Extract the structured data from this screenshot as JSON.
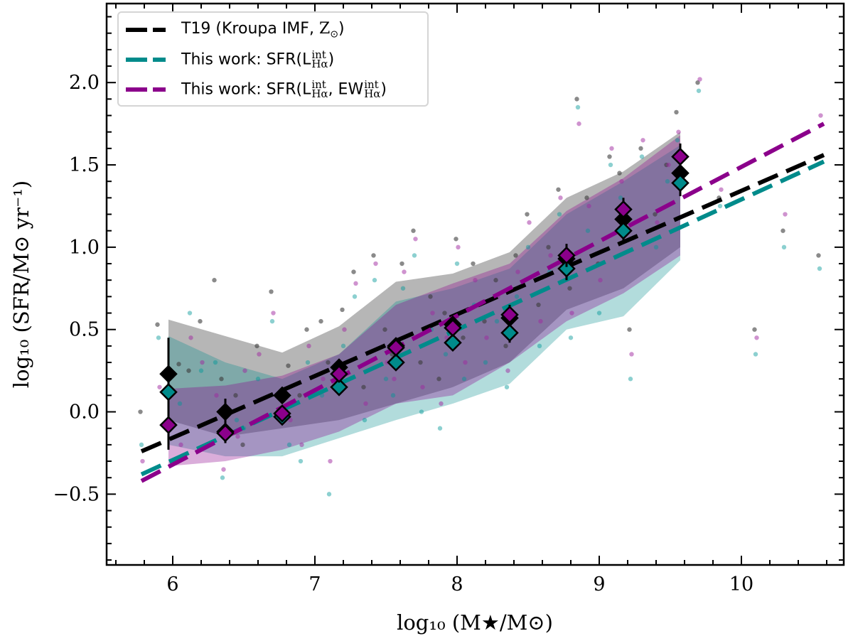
{
  "chart_data": {
    "type": "scatter",
    "xlabel": "log₁₀ (M★/M⊙)",
    "ylabel": "log₁₀ (SFR/M⊙ yr⁻¹)",
    "xlim": [
      5.535,
      10.72
    ],
    "ylim": [
      -0.93,
      2.48
    ],
    "xticks": [
      6,
      7,
      8,
      9,
      10
    ],
    "yticks": [
      -0.5,
      0.0,
      0.5,
      1.0,
      1.5,
      2.0
    ],
    "ytick_labels": [
      "−0.5",
      "0.0",
      "0.5",
      "1.0",
      "1.5",
      "2.0"
    ],
    "grid": false,
    "legend_placement": "top-left",
    "legend": [
      {
        "main": "T19 (Kroupa IMF, ",
        "sym": "Z",
        "sub": "⊙",
        "sup": "",
        "tail": ")",
        "color": "#000000"
      },
      {
        "main": "This work: SFR(L",
        "sup": "int",
        "sub": "Hα",
        "tail": ")",
        "color": "#008b8b"
      },
      {
        "main": "This work: SFR(L",
        "sup": "int",
        "sub": "Hα",
        "mid": ", EW",
        "sup2": "int",
        "sub2": "Hα",
        "tail": ")",
        "color": "#8b008b"
      }
    ],
    "series": [
      {
        "color": "#000000",
        "line": {
          "x": [
            5.78,
            10.58
          ],
          "y": [
            -0.24,
            1.56
          ]
        },
        "bins": {
          "x": [
            5.97,
            6.37,
            6.77,
            7.17,
            7.57,
            7.97,
            8.37,
            8.77,
            9.17,
            9.57
          ],
          "y": [
            0.23,
            0.0,
            0.1,
            0.27,
            0.4,
            0.53,
            0.57,
            0.93,
            1.17,
            1.45
          ],
          "err": [
            0.22,
            0.08,
            0.04,
            0.05,
            0.04,
            0.04,
            0.07,
            0.09,
            0.08,
            0.1
          ]
        },
        "band": {
          "x": [
            5.97,
            6.37,
            6.77,
            7.17,
            7.57,
            7.97,
            8.37,
            8.77,
            9.17,
            9.57
          ],
          "upper": [
            0.56,
            0.46,
            0.36,
            0.52,
            0.79,
            0.84,
            0.97,
            1.3,
            1.46,
            1.7
          ],
          "lower": [
            -0.05,
            -0.15,
            -0.1,
            -0.05,
            0.05,
            0.15,
            0.3,
            0.62,
            0.75,
            1.0
          ]
        }
      },
      {
        "color": "#008b8b",
        "line": {
          "x": [
            5.78,
            10.58
          ],
          "y": [
            -0.38,
            1.52
          ]
        },
        "bins": {
          "x": [
            5.97,
            6.37,
            6.77,
            7.17,
            7.57,
            7.97,
            8.37,
            8.77,
            9.17,
            9.57
          ],
          "y": [
            0.12,
            -0.12,
            -0.03,
            0.15,
            0.3,
            0.42,
            0.48,
            0.87,
            1.1,
            1.39
          ],
          "err": [
            0.15,
            0.06,
            0.03,
            0.04,
            0.03,
            0.04,
            0.06,
            0.07,
            0.07,
            0.08
          ]
        },
        "band": {
          "x": [
            5.97,
            6.37,
            6.77,
            7.17,
            7.57,
            7.97,
            8.37,
            8.77,
            9.17,
            9.57
          ],
          "upper": [
            0.46,
            0.3,
            0.2,
            0.35,
            0.67,
            0.75,
            0.87,
            1.2,
            1.4,
            1.62
          ],
          "lower": [
            -0.2,
            -0.27,
            -0.27,
            -0.16,
            -0.05,
            0.05,
            0.17,
            0.5,
            0.58,
            0.92
          ]
        }
      },
      {
        "color": "#8b008b",
        "line": {
          "x": [
            5.78,
            10.58
          ],
          "y": [
            -0.42,
            1.75
          ]
        },
        "bins": {
          "x": [
            5.97,
            6.37,
            6.77,
            7.17,
            7.57,
            7.97,
            8.37,
            8.77,
            9.17,
            9.57
          ],
          "y": [
            -0.08,
            -0.13,
            -0.01,
            0.23,
            0.39,
            0.51,
            0.59,
            0.95,
            1.23,
            1.55
          ],
          "err": [
            0.15,
            0.06,
            0.03,
            0.04,
            0.03,
            0.04,
            0.06,
            0.07,
            0.07,
            0.08
          ]
        },
        "band": {
          "x": [
            5.97,
            6.37,
            6.77,
            7.17,
            7.57,
            7.97,
            8.37,
            8.77,
            9.17,
            9.57
          ],
          "upper": [
            0.14,
            0.16,
            0.22,
            0.35,
            0.65,
            0.78,
            0.9,
            1.22,
            1.42,
            1.68
          ],
          "lower": [
            -0.33,
            -0.3,
            -0.23,
            -0.12,
            0.05,
            0.1,
            0.3,
            0.55,
            0.72,
            0.95
          ]
        }
      }
    ],
    "points": {
      "x": [
        5.78,
        5.9,
        6.05,
        6.12,
        6.2,
        6.3,
        6.35,
        6.45,
        6.5,
        6.6,
        6.7,
        6.82,
        6.9,
        6.95,
        7.05,
        7.1,
        7.2,
        7.28,
        7.35,
        7.42,
        7.5,
        7.55,
        7.62,
        7.7,
        7.75,
        7.82,
        7.88,
        7.92,
        8.0,
        8.05,
        8.12,
        8.2,
        8.28,
        8.35,
        8.42,
        8.5,
        8.58,
        8.65,
        8.72,
        8.8,
        8.85,
        8.92,
        9.0,
        9.08,
        9.15,
        9.22,
        9.3,
        9.4,
        9.48,
        9.55,
        9.7,
        9.85,
        10.1,
        10.3,
        10.55
      ],
      "y_black": [
        0.0,
        0.53,
        0.29,
        0.25,
        0.55,
        0.8,
        0.2,
        0.1,
        -0.2,
        0.4,
        0.73,
        0.28,
        0.1,
        0.5,
        0.55,
        0.3,
        0.62,
        0.85,
        0.15,
        0.95,
        0.5,
        0.35,
        0.9,
        1.1,
        0.3,
        0.7,
        0.2,
        0.6,
        1.05,
        0.45,
        0.9,
        0.55,
        0.8,
        0.4,
        0.95,
        1.2,
        0.65,
        1.0,
        1.35,
        0.75,
        1.9,
        1.3,
        0.9,
        1.55,
        1.45,
        0.5,
        1.6,
        1.2,
        1.5,
        1.82,
        2.0,
        1.3,
        0.5,
        1.1,
        0.95
      ],
      "y_teal": [
        -0.2,
        0.45,
        0.05,
        0.6,
        0.25,
        0.3,
        -0.4,
        -0.05,
        -0.1,
        0.2,
        0.55,
        -0.2,
        -0.3,
        0.3,
        0.1,
        -0.5,
        0.4,
        0.7,
        -0.05,
        0.8,
        0.2,
        0.1,
        0.75,
        0.95,
        0.0,
        0.5,
        -0.1,
        0.35,
        0.9,
        0.2,
        0.65,
        0.3,
        0.55,
        0.15,
        0.7,
        1.0,
        0.4,
        0.85,
        1.2,
        0.45,
        1.85,
        1.1,
        0.6,
        1.5,
        1.3,
        0.2,
        1.55,
        1.0,
        1.4,
        1.65,
        1.95,
        1.25,
        0.35,
        1.0,
        0.87
      ],
      "y_purple": [
        -0.3,
        0.15,
        -0.2,
        0.45,
        0.3,
        0.1,
        -0.35,
        -0.15,
        0.25,
        0.35,
        0.6,
        -0.05,
        -0.2,
        0.4,
        0.2,
        -0.3,
        0.5,
        0.78,
        0.05,
        0.9,
        0.3,
        0.2,
        0.85,
        1.05,
        0.15,
        0.6,
        0.05,
        0.45,
        1.0,
        0.3,
        0.8,
        0.45,
        0.7,
        0.25,
        0.85,
        1.15,
        0.55,
        0.95,
        1.3,
        0.6,
        1.75,
        1.25,
        0.8,
        1.6,
        1.4,
        0.35,
        1.65,
        1.15,
        1.5,
        1.7,
        2.02,
        1.35,
        0.45,
        1.2,
        1.8
      ]
    }
  }
}
